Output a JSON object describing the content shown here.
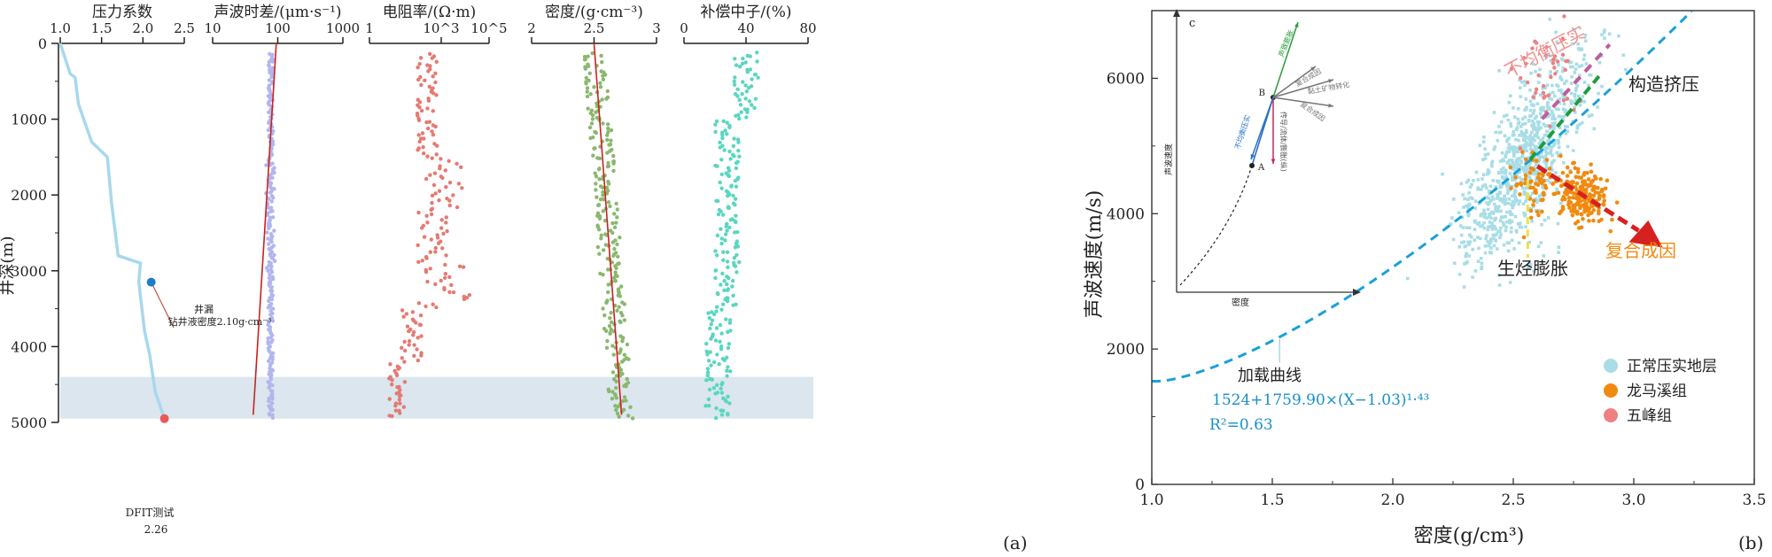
{
  "figure": {
    "left_label": "(a)",
    "right_label": "(b)"
  },
  "panel_a": {
    "depth_axis": {
      "label": "井深(m)",
      "ticks": [
        "0",
        "1000",
        "2000",
        "3000",
        "4000",
        "5000"
      ],
      "range": [
        0,
        5000
      ]
    },
    "shaded_interval": [
      4400,
      4950
    ],
    "tracks": [
      {
        "title": "压力系数",
        "ticks": [
          "1.0",
          "1.5",
          "2.0",
          "2.5"
        ],
        "range": [
          1.0,
          2.5
        ],
        "scale": "linear"
      },
      {
        "title": "声波时差/(μm·s⁻¹)",
        "ticks": [
          "10",
          "100",
          "1000"
        ],
        "range": [
          10,
          1000
        ],
        "scale": "log"
      },
      {
        "title": "电阻率/(Ω·m)",
        "ticks": [
          "1",
          "10^3",
          "10^5"
        ],
        "range": [
          1,
          100000
        ],
        "scale": "log"
      },
      {
        "title": "密度/(g·cm⁻³)",
        "ticks": [
          "2",
          "2.5",
          "3"
        ],
        "range": [
          2,
          3
        ],
        "scale": "linear"
      },
      {
        "title": "补偿中子/(%)",
        "ticks": [
          "0",
          "40",
          "80"
        ],
        "range": [
          0,
          80
        ],
        "scale": "linear"
      }
    ],
    "annotations": {
      "well_loss_title": "井漏",
      "well_loss_text": "钻井液密度2.10g·cm⁻³",
      "dfit_title": "DFIT测试",
      "dfit_value": "2.26"
    }
  },
  "panel_b": {
    "xlabel": "密度(g/cm³)",
    "ylabel": "声波速度(m/s)",
    "x_ticks": [
      "1.0",
      "1.5",
      "2.0",
      "2.5",
      "3.0",
      "3.5"
    ],
    "y_ticks": [
      "0",
      "2000",
      "4000",
      "6000"
    ],
    "xlim": [
      1.0,
      3.5
    ],
    "ylim": [
      0,
      7000
    ],
    "annotations": {
      "unbalanced": "不均衡压实",
      "tectonic": "构造挤压",
      "hydrocarbon": "生烃膨胀",
      "composite": "复合成因",
      "loading_curve": "加载曲线",
      "equation": "1524+1759.90×(X−1.03)¹·⁴³",
      "r2": "R²=0.63"
    },
    "legend": [
      {
        "label": "正常压实地层",
        "color": "#a8dde6"
      },
      {
        "label": "龙马溪组",
        "color": "#f08a10"
      },
      {
        "label": "五峰组",
        "color": "#ee8080"
      }
    ],
    "inset": {
      "label": "c",
      "xlabel": "密度",
      "ylabel": "声波速度",
      "arrows": [
        "不均衡压实",
        "声致膨胀",
        "复合成因",
        "黏土矿物转化",
        "复合成因",
        "传导/流体/膨胀(纵)"
      ]
    }
  },
  "chart_data": [
    {
      "type": "line",
      "title": "压力系数",
      "xlabel": "压力系数",
      "ylabel": "井深(m)",
      "series": [
        {
          "name": "",
          "x": [
            1.0,
            1.12,
            1.18,
            1.22,
            1.38,
            1.57,
            1.62,
            1.7,
            1.97,
            1.95,
            2.02,
            2.08,
            2.15,
            2.26
          ],
          "y": [
            0,
            400,
            450,
            800,
            1300,
            1500,
            2100,
            2800,
            2900,
            3150,
            3800,
            4100,
            4600,
            4950
          ]
        }
      ],
      "points": [
        {
          "name": "井漏",
          "x": 2.1,
          "y": 3150
        },
        {
          "name": "DFIT测试",
          "x": 2.26,
          "y": 4950
        }
      ],
      "xlim": [
        1.0,
        2.5
      ],
      "ylim": [
        5000,
        0
      ]
    },
    {
      "type": "scatter",
      "title": "声波时差/(μm·s⁻¹)",
      "trend_line": {
        "x": [
          95,
          42
        ],
        "y": [
          0,
          4900
        ]
      },
      "xlim": [
        10,
        1000
      ],
      "ylim": [
        5000,
        0
      ]
    },
    {
      "type": "scatter",
      "title": "电阻率/(Ω·m)",
      "xlim": [
        1,
        100000
      ],
      "ylim": [
        5000,
        0
      ]
    },
    {
      "type": "scatter",
      "title": "密度/(g·cm⁻³)",
      "trend_line": {
        "x": [
          2.5,
          2.72
        ],
        "y": [
          0,
          4900
        ]
      },
      "xlim": [
        2,
        3
      ],
      "ylim": [
        5000,
        0
      ]
    },
    {
      "type": "scatter",
      "title": "补偿中子/(%)",
      "xlim": [
        0,
        80
      ],
      "ylim": [
        5000,
        0
      ]
    },
    {
      "type": "scatter",
      "title": "",
      "xlabel": "密度(g/cm³)",
      "ylabel": "声波速度(m/s)",
      "series": [
        {
          "name": "正常压实地层",
          "color": "#a8dde6",
          "center_x": 2.55,
          "center_y": 4800,
          "spread_x": 0.25,
          "spread_y": 900
        },
        {
          "name": "龙马溪组",
          "color": "#f08a10",
          "center_x": 2.74,
          "center_y": 4350,
          "spread_x": 0.1,
          "spread_y": 300
        },
        {
          "name": "五峰组",
          "color": "#ee8080",
          "center_x": 2.66,
          "center_y": 6000,
          "spread_x": 0.1,
          "spread_y": 400
        }
      ],
      "loading_curve": {
        "equation": "1524+1759.90×(X−1.03)^1.43",
        "r2": 0.63
      },
      "xlim": [
        1.0,
        3.5
      ],
      "ylim": [
        0,
        7000
      ]
    }
  ]
}
